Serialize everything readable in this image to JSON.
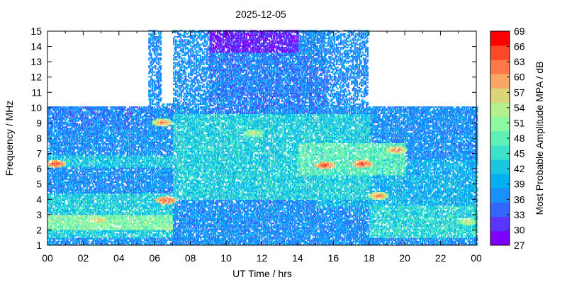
{
  "chart_data": {
    "type": "heatmap",
    "title": "2025-12-05",
    "xlabel": "UT Time / hrs",
    "ylabel": "Frequency / MHz",
    "colorbar_label": "Most Probable Amplitude MPA / dB",
    "xlim": [
      0,
      24
    ],
    "ylim": [
      1,
      15
    ],
    "clim": [
      27,
      69
    ],
    "x_ticks": [
      "00",
      "02",
      "04",
      "06",
      "08",
      "10",
      "12",
      "14",
      "16",
      "18",
      "20",
      "22",
      "00"
    ],
    "x_tick_values": [
      0,
      2,
      4,
      6,
      8,
      10,
      12,
      14,
      16,
      18,
      20,
      22,
      24
    ],
    "y_ticks": [
      "1",
      "2",
      "3",
      "4",
      "5",
      "6",
      "7",
      "8",
      "9",
      "10",
      "11",
      "12",
      "13",
      "14",
      "15"
    ],
    "y_tick_values": [
      1,
      2,
      3,
      4,
      5,
      6,
      7,
      8,
      9,
      10,
      11,
      12,
      13,
      14,
      15
    ],
    "colorbar_ticks": [
      "27",
      "30",
      "33",
      "36",
      "39",
      "42",
      "45",
      "48",
      "51",
      "54",
      "57",
      "60",
      "63",
      "66",
      "69"
    ],
    "colorbar_tick_values": [
      27,
      30,
      33,
      36,
      39,
      42,
      45,
      48,
      51,
      54,
      57,
      60,
      63,
      66,
      69
    ],
    "colorscale": [
      "#7f00ff",
      "#5a34ff",
      "#3366ff",
      "#1a90ff",
      "#00b0f0",
      "#19c8e0",
      "#3de0c8",
      "#5ef0b4",
      "#8cf8a0",
      "#b4f08c",
      "#dcd478",
      "#f8a864",
      "#ff7848",
      "#ff4828",
      "#ff0000"
    ],
    "grid": false,
    "legend": "colorbar-right",
    "coverage": [
      {
        "x": [
          0.0,
          5.6
        ],
        "y": [
          1.0,
          10.0
        ]
      },
      {
        "x": [
          5.6,
          6.3
        ],
        "y": [
          1.0,
          15.0
        ]
      },
      {
        "x": [
          6.3,
          7.0
        ],
        "y": [
          1.0,
          10.2
        ]
      },
      {
        "x": [
          7.0,
          17.9
        ],
        "y": [
          1.0,
          15.0
        ]
      },
      {
        "x": [
          17.9,
          24.0
        ],
        "y": [
          1.0,
          10.0
        ]
      }
    ],
    "bands": [
      {
        "x": [
          0.0,
          7.0
        ],
        "y": [
          1.5,
          4.4
        ],
        "level": 43
      },
      {
        "x": [
          0.0,
          7.0
        ],
        "y": [
          2.0,
          3.0
        ],
        "level": 50
      },
      {
        "x": [
          0.0,
          7.5
        ],
        "y": [
          6.0,
          6.8
        ],
        "level": 42
      },
      {
        "x": [
          0.0,
          5.5
        ],
        "y": [
          8.5,
          10.0
        ],
        "level": 36
      },
      {
        "x": [
          7.0,
          18.0
        ],
        "y": [
          4.0,
          9.5
        ],
        "level": 43
      },
      {
        "x": [
          9.0,
          15.5
        ],
        "y": [
          9.5,
          13.5
        ],
        "level": 36
      },
      {
        "x": [
          9.0,
          14.0
        ],
        "y": [
          13.5,
          15.0
        ],
        "level": 30
      },
      {
        "x": [
          14.0,
          20.0
        ],
        "y": [
          5.5,
          7.6
        ],
        "level": 47
      },
      {
        "x": [
          18.0,
          24.0
        ],
        "y": [
          1.5,
          3.6
        ],
        "level": 44
      },
      {
        "x": [
          15.0,
          24.0
        ],
        "y": [
          3.5,
          6.5
        ],
        "level": 40
      }
    ],
    "hotspots": [
      {
        "x": 0.4,
        "y": 6.3,
        "level": 66
      },
      {
        "x": 2.8,
        "y": 2.6,
        "level": 60
      },
      {
        "x": 6.6,
        "y": 3.9,
        "level": 66
      },
      {
        "x": 6.4,
        "y": 9.0,
        "level": 63
      },
      {
        "x": 15.5,
        "y": 6.2,
        "level": 66
      },
      {
        "x": 17.6,
        "y": 6.3,
        "level": 66
      },
      {
        "x": 19.5,
        "y": 7.2,
        "level": 63
      },
      {
        "x": 18.5,
        "y": 4.2,
        "level": 63
      },
      {
        "x": 23.5,
        "y": 2.5,
        "level": 57
      },
      {
        "x": 11.5,
        "y": 8.3,
        "level": 57
      }
    ]
  }
}
